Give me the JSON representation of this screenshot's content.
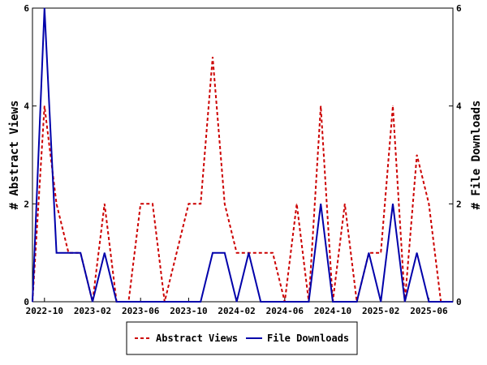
{
  "chart_data": {
    "type": "line",
    "title": "",
    "ylabel": "# Abstract Views",
    "y2label": "# File Downloads",
    "ylim": [
      0,
      6
    ],
    "y2lim": [
      0,
      6
    ],
    "yticks": [
      "0",
      "2",
      "4",
      "6"
    ],
    "x_tick_labels": [
      "2022-10",
      "2023-02",
      "2023-06",
      "2023-10",
      "2024-02",
      "2024-06",
      "2024-10",
      "2025-02",
      "2025-06"
    ],
    "x": [
      "2022-09",
      "2022-10",
      "2022-11",
      "2022-12",
      "2023-01",
      "2023-02",
      "2023-03",
      "2023-04",
      "2023-05",
      "2023-06",
      "2023-07",
      "2023-08",
      "2023-09",
      "2023-10",
      "2023-11",
      "2023-12",
      "2024-01",
      "2024-02",
      "2024-03",
      "2024-04",
      "2024-05",
      "2024-06",
      "2024-07",
      "2024-08",
      "2024-09",
      "2024-10",
      "2024-11",
      "2024-12",
      "2025-01",
      "2025-02",
      "2025-03",
      "2025-04",
      "2025-05",
      "2025-06",
      "2025-07",
      "2025-08"
    ],
    "series": [
      {
        "name": "Abstract Views",
        "color": "#cc0000",
        "dash": true,
        "values": [
          0,
          4,
          2,
          1,
          1,
          0,
          2,
          0,
          0,
          2,
          2,
          0,
          1,
          2,
          2,
          5,
          2,
          1,
          1,
          1,
          1,
          0,
          2,
          0,
          4,
          0,
          2,
          0,
          1,
          1,
          4,
          0,
          3,
          2,
          0,
          0
        ]
      },
      {
        "name": "File Downloads",
        "color": "#0000aa",
        "dash": false,
        "values": [
          0,
          6,
          1,
          1,
          1,
          0,
          1,
          0,
          0,
          0,
          0,
          0,
          0,
          0,
          0,
          1,
          1,
          0,
          1,
          0,
          0,
          0,
          0,
          0,
          2,
          0,
          0,
          0,
          1,
          0,
          2,
          0,
          1,
          0,
          0,
          0
        ]
      }
    ],
    "legend": [
      "Abstract Views",
      "File Downloads"
    ],
    "legend_position": "bottom",
    "grid": false
  }
}
